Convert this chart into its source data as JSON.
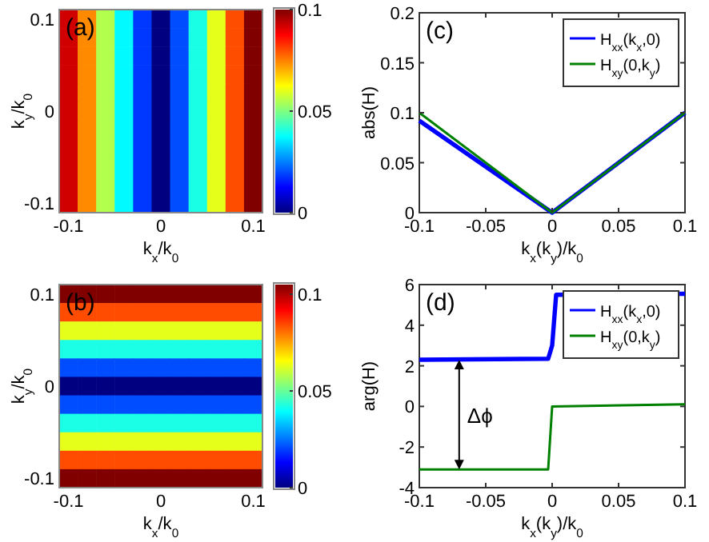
{
  "chart_data": [
    {
      "type": "heatmap",
      "xlabel": "k$_{x}$/k$_{0}$",
      "ylabel": "k$_{y}$/k$_{0}$",
      "annotations": [
        "(a)"
      ],
      "categories": [
        "-0.1",
        null,
        null,
        null,
        null,
        "0",
        null,
        null,
        null,
        null,
        "0.1"
      ],
      "y_categories": [
        "0.1",
        null,
        null,
        null,
        null,
        "0",
        null,
        null,
        null,
        null,
        "-0.1"
      ],
      "cells": [
        [
          0.092,
          0.074,
          0.055,
          0.037,
          0.018,
          0,
          0.02,
          0.04,
          0.06,
          0.08,
          0.1
        ],
        [
          0.092,
          0.074,
          0.055,
          0.037,
          0.018,
          0,
          0.02,
          0.04,
          0.06,
          0.08,
          0.1
        ],
        [
          0.092,
          0.074,
          0.055,
          0.037,
          0.018,
          0,
          0.02,
          0.04,
          0.06,
          0.08,
          0.1
        ],
        [
          0.092,
          0.074,
          0.055,
          0.037,
          0.018,
          0,
          0.02,
          0.04,
          0.06,
          0.08,
          0.1
        ],
        [
          0.092,
          0.074,
          0.055,
          0.037,
          0.018,
          0,
          0.02,
          0.04,
          0.06,
          0.08,
          0.1
        ],
        [
          0.092,
          0.074,
          0.055,
          0.037,
          0.018,
          0,
          0.02,
          0.04,
          0.06,
          0.08,
          0.1
        ],
        [
          0.092,
          0.074,
          0.055,
          0.037,
          0.018,
          0,
          0.02,
          0.04,
          0.06,
          0.08,
          0.1
        ],
        [
          0.092,
          0.074,
          0.055,
          0.037,
          0.018,
          0,
          0.02,
          0.04,
          0.06,
          0.08,
          0.1
        ],
        [
          0.092,
          0.074,
          0.055,
          0.037,
          0.018,
          0,
          0.02,
          0.04,
          0.06,
          0.08,
          0.1
        ],
        [
          0.092,
          0.074,
          0.055,
          0.037,
          0.018,
          0,
          0.02,
          0.04,
          0.06,
          0.08,
          0.1
        ],
        [
          0.092,
          0.074,
          0.055,
          0.037,
          0.018,
          0,
          0.02,
          0.04,
          0.06,
          0.08,
          0.1
        ]
      ],
      "clim": [
        0,
        0.1
      ],
      "cticks": [
        0,
        0.05,
        0.1
      ]
    },
    {
      "type": "line",
      "xlabel": "k$_{x}$(k$_{y}$)/k$_{0}$",
      "ylabel": "abs(H)",
      "annotations": [
        "(c)"
      ],
      "x": [
        -0.1,
        0,
        0.1
      ],
      "series": [
        {
          "name": "H$_{xx}$(k$_{x}$,0)",
          "color": "#0000ff",
          "values": [
            0.092,
            0,
            0.1
          ]
        },
        {
          "name": "H$_{xy}$(0,k$_{y}$)",
          "color": "#008000",
          "values": [
            0.1,
            0,
            0.1
          ]
        }
      ],
      "xlim": [
        -0.1,
        0.1
      ],
      "xticks": [
        -0.1,
        -0.05,
        0,
        0.05,
        0.1
      ],
      "ylim": [
        0,
        0.2
      ],
      "yticks": [
        0,
        0.05,
        0.1,
        0.15,
        0.2
      ],
      "legend": "top right"
    },
    {
      "type": "heatmap",
      "xlabel": "k$_{x}$/k$_{0}$",
      "ylabel": "k$_{y}$/k$_{0}$",
      "annotations": [
        "(b)"
      ],
      "categories": [
        "-0.1",
        null,
        null,
        null,
        null,
        "0",
        null,
        null,
        null,
        null,
        "0.1"
      ],
      "y_categories": [
        "0.1",
        null,
        null,
        null,
        null,
        "0",
        null,
        null,
        null,
        null,
        "-0.1"
      ],
      "cells": [
        [
          0.105,
          0.105,
          0.105,
          0.105,
          0.105,
          0.105,
          0.105,
          0.105,
          0.105,
          0.105,
          0.105
        ],
        [
          0.084,
          0.084,
          0.084,
          0.084,
          0.084,
          0.084,
          0.084,
          0.084,
          0.084,
          0.084,
          0.084
        ],
        [
          0.063,
          0.063,
          0.063,
          0.063,
          0.063,
          0.063,
          0.063,
          0.063,
          0.063,
          0.063,
          0.063
        ],
        [
          0.042,
          0.042,
          0.042,
          0.042,
          0.042,
          0.042,
          0.042,
          0.042,
          0.042,
          0.042,
          0.042
        ],
        [
          0.021,
          0.021,
          0.021,
          0.021,
          0.021,
          0.021,
          0.021,
          0.021,
          0.021,
          0.021,
          0.021
        ],
        [
          0,
          0,
          0,
          0,
          0,
          0,
          0,
          0,
          0,
          0,
          0
        ],
        [
          0.021,
          0.021,
          0.021,
          0.021,
          0.021,
          0.021,
          0.021,
          0.021,
          0.021,
          0.021,
          0.021
        ],
        [
          0.042,
          0.042,
          0.042,
          0.042,
          0.042,
          0.042,
          0.042,
          0.042,
          0.042,
          0.042,
          0.042
        ],
        [
          0.063,
          0.063,
          0.063,
          0.063,
          0.063,
          0.063,
          0.063,
          0.063,
          0.063,
          0.063,
          0.063
        ],
        [
          0.084,
          0.084,
          0.084,
          0.084,
          0.084,
          0.084,
          0.084,
          0.084,
          0.084,
          0.084,
          0.084
        ],
        [
          0.105,
          0.105,
          0.105,
          0.105,
          0.105,
          0.105,
          0.105,
          0.105,
          0.105,
          0.105,
          0.105
        ]
      ],
      "clim": [
        0,
        0.105
      ],
      "cticks": [
        0,
        0.05,
        0.1
      ]
    },
    {
      "type": "line",
      "xlabel": "k$_{x}$(k$_{y}$)/k$_{0}$",
      "ylabel": "arg(H)",
      "annotations": [
        "(d)",
        "Δϕ"
      ],
      "series": [
        {
          "name": "H$_{xx}$(k$_{x}$,0)",
          "color": "#0000ff",
          "x": [
            -0.1,
            -0.003,
            0,
            0.003,
            0.1
          ],
          "values": [
            2.3,
            2.35,
            3,
            5.5,
            5.55
          ]
        },
        {
          "name": "H$_{xy}$(0,k$_{y}$)",
          "color": "#008000",
          "x": [
            -0.1,
            -0.003,
            0,
            0.1
          ],
          "values": [
            -3.1,
            -3.1,
            0,
            0.1
          ]
        }
      ],
      "xlim": [
        -0.1,
        0.1
      ],
      "xticks": [
        -0.1,
        -0.05,
        0,
        0.05,
        0.1
      ],
      "ylim": [
        -4,
        6
      ],
      "yticks": [
        -4,
        -2,
        0,
        2,
        4,
        6
      ],
      "legend": "top right"
    }
  ]
}
